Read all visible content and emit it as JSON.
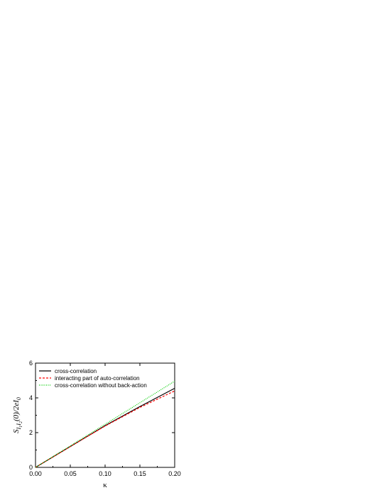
{
  "chart_data": {
    "type": "line",
    "title": "",
    "xlabel": "κ",
    "ylabel": {
      "main": "S",
      "sub1": "I",
      "sub1a": "1",
      "sub1b": "I",
      "sub1c": "2",
      "tail": "(0)/2eI",
      "tail_sub": "0"
    },
    "xlim": [
      0.0,
      0.2
    ],
    "ylim": [
      0,
      6
    ],
    "x_ticks": [
      "0.00",
      "0.05",
      "0.10",
      "0.15",
      "0.20"
    ],
    "y_ticks": [
      "0",
      "2",
      "4",
      "6"
    ],
    "grid": false,
    "legend_position": "top-left",
    "series": [
      {
        "name": "cross-correlation",
        "color": "#000000",
        "dash": "solid",
        "x": [
          0.0,
          0.05,
          0.1,
          0.15,
          0.2
        ],
        "y": [
          0.0,
          1.2,
          2.4,
          3.5,
          4.55
        ]
      },
      {
        "name": "interacting part of auto-correlation",
        "color": "#ff0000",
        "dash": "dashed",
        "x": [
          0.0,
          0.05,
          0.1,
          0.15,
          0.2
        ],
        "y": [
          0.0,
          1.2,
          2.38,
          3.45,
          4.4
        ]
      },
      {
        "name": "cross-correlation without back-action",
        "color": "#00cc00",
        "dash": "dotted",
        "x": [
          0.0,
          0.05,
          0.1,
          0.15,
          0.2
        ],
        "y": [
          0.0,
          1.24,
          2.48,
          3.72,
          4.96
        ]
      }
    ]
  }
}
